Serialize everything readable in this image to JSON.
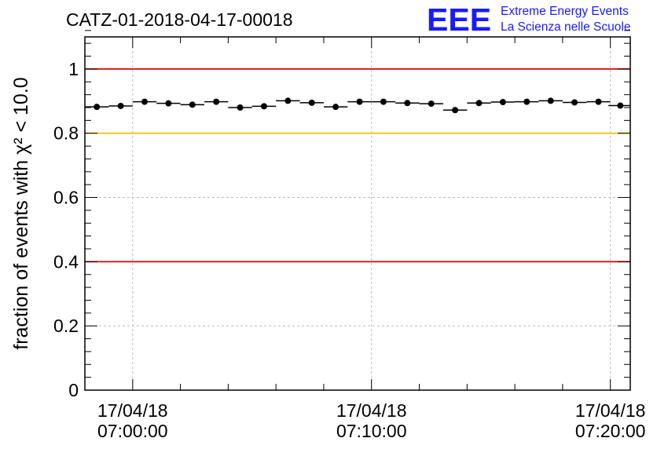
{
  "title": "CATZ-01-2018-04-17-00018",
  "logo": {
    "mark": "EEE",
    "line1": "Extreme Energy Events",
    "line2": "La Scienza nelle Scuole",
    "color": "#1a1aff"
  },
  "chart_data": {
    "type": "scatter",
    "title": "CATZ-01-2018-04-17-00018",
    "ylabel": "fraction of events with χ² < 10.0",
    "xlabel": "",
    "xlim": [
      "06:58:00",
      "07:20:50"
    ],
    "ylim": [
      0,
      1.1
    ],
    "yticks": [
      0,
      0.2,
      0.4,
      0.6,
      0.8,
      1
    ],
    "ytick_labels": [
      "0",
      "0.2",
      "0.4",
      "0.6",
      "0.8",
      "1"
    ],
    "xticks": [
      "07:00:00",
      "07:10:00",
      "07:20:00"
    ],
    "xtick_labels": [
      {
        "date": "17/04/18",
        "time": "07:00:00"
      },
      {
        "date": "17/04/18",
        "time": "07:10:00"
      },
      {
        "date": "17/04/18",
        "time": "07:20:00"
      }
    ],
    "grid": true,
    "reference_lines": [
      {
        "y": 1.0,
        "color": "#e00000"
      },
      {
        "y": 0.8,
        "color": "#ffc000"
      },
      {
        "y": 0.4,
        "color": "#e00000"
      }
    ],
    "bin_width_minutes": 1,
    "x": [
      "06:58:30",
      "06:59:30",
      "07:00:30",
      "07:01:30",
      "07:02:30",
      "07:03:30",
      "07:04:30",
      "07:05:30",
      "07:06:30",
      "07:07:30",
      "07:08:30",
      "07:09:30",
      "07:10:30",
      "07:11:30",
      "07:12:30",
      "07:13:30",
      "07:14:30",
      "07:15:30",
      "07:16:30",
      "07:17:30",
      "07:18:30",
      "07:19:30",
      "07:20:25"
    ],
    "y": [
      0.882,
      0.885,
      0.898,
      0.893,
      0.889,
      0.898,
      0.88,
      0.884,
      0.901,
      0.895,
      0.882,
      0.898,
      0.898,
      0.894,
      0.892,
      0.872,
      0.894,
      0.897,
      0.898,
      0.901,
      0.896,
      0.898,
      0.886
    ],
    "marker_color": "#000000"
  }
}
